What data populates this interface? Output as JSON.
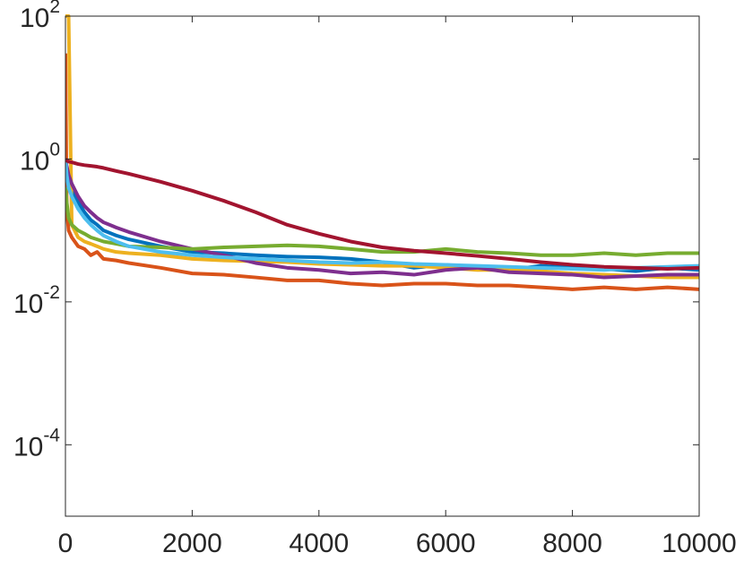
{
  "chart_data": {
    "type": "line",
    "x": [
      0,
      20,
      50,
      100,
      200,
      300,
      400,
      500,
      600,
      800,
      1000,
      1500,
      2000,
      2500,
      3000,
      3500,
      4000,
      4500,
      5000,
      5500,
      6000,
      6500,
      7000,
      7500,
      8000,
      8500,
      9000,
      9500,
      10000
    ],
    "series": [
      {
        "color": "#0072BD",
        "values": [
          1,
          0.7,
          0.5,
          0.35,
          0.25,
          0.18,
          0.14,
          0.12,
          0.1,
          0.085,
          0.075,
          0.06,
          0.05,
          0.048,
          0.045,
          0.043,
          0.042,
          0.04,
          0.036,
          0.03,
          0.033,
          0.03,
          0.028,
          0.032,
          0.03,
          0.029,
          0.027,
          0.03,
          0.028
        ]
      },
      {
        "color": "#D95319",
        "values": [
          30,
          0.2,
          0.1,
          0.08,
          0.06,
          0.055,
          0.045,
          0.05,
          0.04,
          0.038,
          0.035,
          0.03,
          0.025,
          0.024,
          0.022,
          0.02,
          0.02,
          0.018,
          0.017,
          0.018,
          0.018,
          0.017,
          0.017,
          0.016,
          0.015,
          0.016,
          0.015,
          0.016,
          0.015
        ]
      },
      {
        "color": "#EDB120",
        "values": [
          100,
          100,
          100,
          0.12,
          0.08,
          0.07,
          0.065,
          0.06,
          0.055,
          0.05,
          0.048,
          0.045,
          0.04,
          0.038,
          0.037,
          0.036,
          0.034,
          0.033,
          0.032,
          0.032,
          0.03,
          0.028,
          0.028,
          0.027,
          0.025,
          0.024,
          0.023,
          0.022,
          0.022
        ]
      },
      {
        "color": "#7E2F8E",
        "values": [
          1,
          0.8,
          0.6,
          0.45,
          0.3,
          0.22,
          0.18,
          0.15,
          0.13,
          0.11,
          0.095,
          0.07,
          0.055,
          0.045,
          0.035,
          0.03,
          0.028,
          0.025,
          0.026,
          0.024,
          0.028,
          0.03,
          0.026,
          0.025,
          0.024,
          0.022,
          0.023,
          0.024,
          0.024
        ]
      },
      {
        "color": "#77AC30",
        "values": [
          0.4,
          0.25,
          0.15,
          0.12,
          0.1,
          0.09,
          0.08,
          0.075,
          0.07,
          0.065,
          0.06,
          0.058,
          0.055,
          0.058,
          0.06,
          0.062,
          0.06,
          0.055,
          0.05,
          0.05,
          0.055,
          0.05,
          0.048,
          0.045,
          0.045,
          0.048,
          0.045,
          0.048,
          0.048
        ]
      },
      {
        "color": "#4DBEEE",
        "values": [
          1,
          0.6,
          0.4,
          0.3,
          0.2,
          0.15,
          0.12,
          0.1,
          0.085,
          0.07,
          0.06,
          0.05,
          0.045,
          0.042,
          0.04,
          0.038,
          0.036,
          0.035,
          0.036,
          0.034,
          0.033,
          0.032,
          0.031,
          0.03,
          0.029,
          0.028,
          0.03,
          0.031,
          0.032
        ]
      },
      {
        "color": "#A2142F",
        "values": [
          1,
          0.95,
          0.92,
          0.9,
          0.85,
          0.82,
          0.8,
          0.78,
          0.75,
          0.68,
          0.62,
          0.48,
          0.36,
          0.26,
          0.18,
          0.12,
          0.09,
          0.07,
          0.058,
          0.052,
          0.048,
          0.044,
          0.04,
          0.036,
          0.033,
          0.031,
          0.03,
          0.029,
          0.03
        ]
      }
    ],
    "xlim": [
      0,
      10000
    ],
    "xticks": [
      0,
      2000,
      4000,
      6000,
      8000,
      10000
    ],
    "ylim": [
      1e-05,
      100
    ],
    "yscale": "log",
    "yticks": [
      {
        "value": 0.0001,
        "label": "10",
        "exponent": "-4"
      },
      {
        "value": 0.01,
        "label": "10",
        "exponent": "-2"
      },
      {
        "value": 1,
        "label": "10",
        "exponent": "0"
      },
      {
        "value": 100,
        "label": "10",
        "exponent": "2"
      }
    ],
    "grid": false
  }
}
